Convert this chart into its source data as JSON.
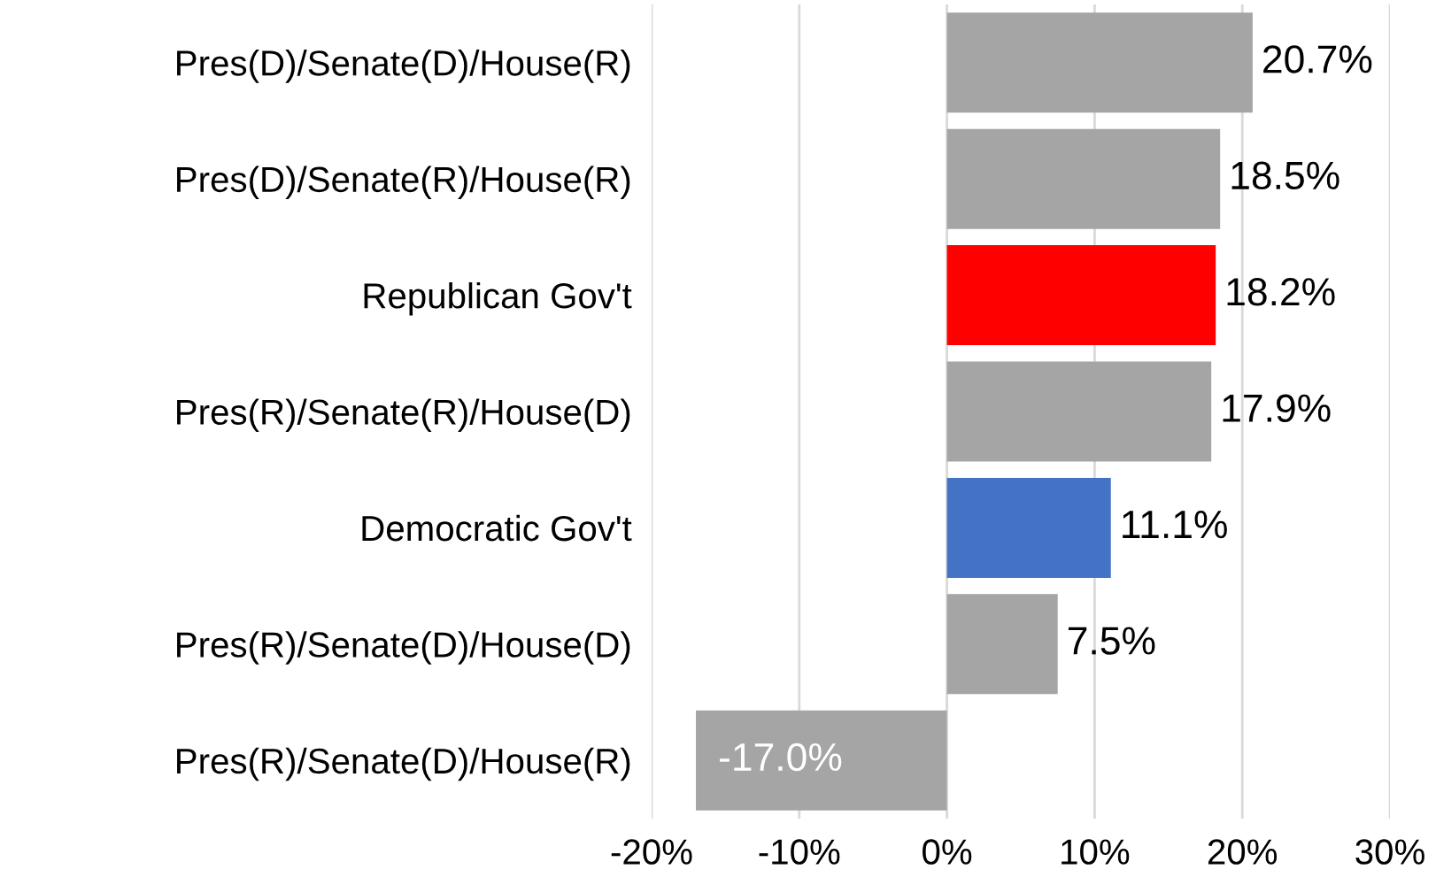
{
  "chart_data": {
    "type": "bar",
    "orientation": "horizontal",
    "categories": [
      "Pres(D)/Senate(D)/House(R)",
      "Pres(D)/Senate(R)/House(R)",
      "Republican Gov't",
      "Pres(R)/Senate(R)/House(D)",
      "Democratic Gov't",
      "Pres(R)/Senate(D)/House(D)",
      "Pres(R)/Senate(D)/House(R)"
    ],
    "values": [
      20.7,
      18.5,
      18.2,
      17.9,
      11.1,
      7.5,
      -17.0
    ],
    "colors": [
      "#a5a5a5",
      "#a5a5a5",
      "#ff0000",
      "#a5a5a5",
      "#4472c4",
      "#a5a5a5",
      "#a5a5a5"
    ],
    "value_labels": [
      "20.7%",
      "18.5%",
      "18.2%",
      "17.9%",
      "11.1%",
      "7.5%",
      "-17.0%"
    ],
    "xlim": [
      -20,
      30
    ],
    "xticks": [
      {
        "value": -20,
        "label": "-20%"
      },
      {
        "value": -10,
        "label": "-10%"
      },
      {
        "value": 0,
        "label": "0%"
      },
      {
        "value": 10,
        "label": "10%"
      },
      {
        "value": 20,
        "label": "20%"
      },
      {
        "value": 30,
        "label": "30%"
      }
    ],
    "grid": "x"
  }
}
